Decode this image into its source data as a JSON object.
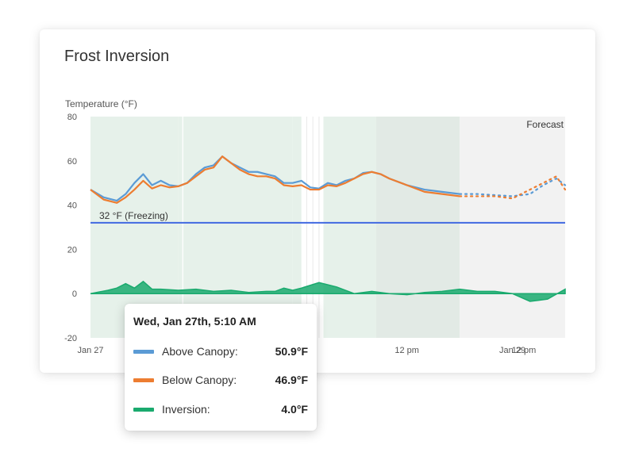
{
  "card": {
    "title": "Frost Inversion"
  },
  "colors": {
    "above": "#5b9bd5",
    "below": "#ed7d31",
    "inversion": "#1aaa6e",
    "freezing_line": "#4169e1",
    "band_green": "#e6f1ea",
    "band_green_dark": "#e2eae5",
    "band_forecast": "#f2f2f2"
  },
  "chart_data": {
    "type": "line",
    "ylabel": "Temperature (°F)",
    "ylim": [
      -20,
      80
    ],
    "yticks": [
      80,
      60,
      40,
      20,
      0,
      -20
    ],
    "xlim": [
      0,
      54
    ],
    "x_unit": "hours from Jan 27 00:00",
    "xticks": [
      {
        "x": 0,
        "label": "Jan 27"
      },
      {
        "x": 36,
        "label": "12 pm"
      },
      {
        "x": 48,
        "label": "Jan 29"
      },
      {
        "x": 60,
        "label": "12 pm"
      }
    ],
    "annotations": {
      "freezing_label": "32 °F (Freezing)",
      "freezing_value": 32,
      "forecast_label": "Forecast",
      "forecast_start": 42
    },
    "series": [
      {
        "name": "Above Canopy",
        "x": [
          0,
          1.5,
          3,
          4,
          5,
          6,
          7,
          8,
          9,
          10,
          11,
          12,
          13,
          14,
          15,
          16,
          17,
          18,
          19,
          20,
          21,
          22,
          23,
          24,
          25,
          26,
          27,
          28,
          29,
          30,
          31,
          32,
          33,
          34,
          36,
          38,
          40,
          42
        ],
        "y": [
          47,
          43.5,
          42,
          45,
          50,
          54,
          49,
          51,
          49,
          48.5,
          50,
          54,
          57,
          58,
          62,
          59,
          57,
          55,
          55,
          54,
          53,
          50,
          50,
          51,
          48,
          47.5,
          50,
          49,
          51,
          52,
          54.5,
          55,
          54,
          52,
          49,
          47,
          46,
          45
        ],
        "forecast_x": [
          42,
          44,
          46,
          48,
          50,
          51.5,
          53,
          54
        ],
        "forecast_y": [
          45,
          45,
          44.5,
          44,
          45,
          49,
          52,
          49
        ]
      },
      {
        "name": "Below Canopy",
        "x": [
          0,
          1.5,
          3,
          4,
          5,
          6,
          7,
          8,
          9,
          10,
          11,
          12,
          13,
          14,
          15,
          16,
          17,
          18,
          19,
          20,
          21,
          22,
          23,
          24,
          25,
          26,
          27,
          28,
          29,
          30,
          31,
          32,
          33,
          34,
          36,
          38,
          40,
          42
        ],
        "y": [
          47,
          42.5,
          41,
          43.5,
          47,
          51,
          47.5,
          49,
          48,
          48.5,
          50,
          53,
          56,
          57,
          62,
          59,
          56,
          54,
          53,
          53,
          52,
          49,
          48.5,
          49,
          47,
          47,
          49,
          48.5,
          50,
          52,
          54,
          55,
          54,
          52,
          49,
          46,
          45,
          44
        ],
        "forecast_x": [
          42,
          44,
          46,
          48,
          50,
          51.5,
          53,
          54
        ],
        "forecast_y": [
          44,
          44,
          44,
          43,
          47,
          50,
          53,
          47
        ]
      },
      {
        "name": "Inversion",
        "x": [
          0,
          2,
          3,
          4,
          5,
          6,
          7,
          8,
          10,
          12,
          14,
          16,
          18,
          20,
          21,
          22,
          23,
          24,
          26,
          28,
          30,
          32,
          34,
          36,
          38,
          40,
          42,
          44,
          46,
          48,
          50,
          51,
          52,
          54
        ],
        "y": [
          0,
          1.5,
          2.5,
          4.5,
          2.5,
          5.5,
          2,
          2,
          1.5,
          2,
          1,
          1.5,
          0.5,
          1,
          1,
          2.5,
          1.5,
          2.5,
          5,
          3,
          0,
          1,
          0,
          -0.5,
          0.5,
          1,
          2,
          1,
          1,
          0,
          -3.5,
          -3,
          -2.5,
          2
        ]
      }
    ]
  },
  "tooltip": {
    "title": "Wed, Jan 27th, 5:10 AM",
    "rows": [
      {
        "label": "Above Canopy:",
        "value": "50.9°F"
      },
      {
        "label": "Below Canopy:",
        "value": "46.9°F"
      },
      {
        "label": "Inversion:",
        "value": "4.0°F"
      }
    ]
  }
}
